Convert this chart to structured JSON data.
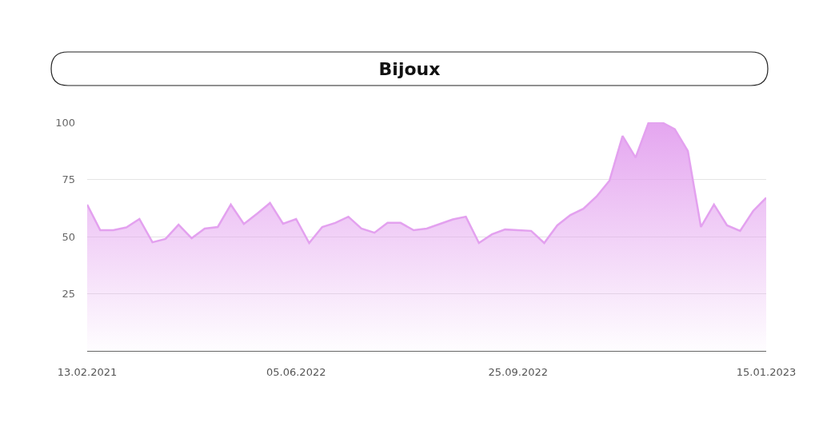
{
  "chart_data": {
    "type": "area",
    "title": "Bijoux",
    "categories": [
      "13.02.2021",
      null,
      null,
      null,
      null,
      null,
      null,
      null,
      null,
      null,
      null,
      null,
      null,
      null,
      null,
      null,
      "05.06.2022",
      null,
      null,
      null,
      null,
      null,
      null,
      null,
      null,
      null,
      null,
      null,
      null,
      null,
      null,
      null,
      null,
      "25.09.2022",
      null,
      null,
      null,
      null,
      null,
      null,
      null,
      null,
      null,
      null,
      null,
      null,
      null,
      null,
      null,
      null,
      null,
      null,
      "15.01.2023"
    ],
    "values": [
      64,
      52.8,
      52.8,
      54,
      57.7,
      47.5,
      49,
      55.2,
      49.3,
      53.5,
      54.2,
      64,
      55.5,
      60,
      64.7,
      55.6,
      57.7,
      47.2,
      54.2,
      56,
      58.7,
      53.5,
      51.7,
      56,
      56,
      52.8,
      53.5,
      55.5,
      57.5,
      58.7,
      47.2,
      51,
      53.1,
      52.8,
      52.5,
      47.2,
      54.9,
      59.4,
      62.2,
      67.5,
      74.5,
      94,
      84.6,
      100,
      100,
      97,
      87.4,
      54.2,
      64,
      54.9,
      52.5,
      61.2,
      67
    ],
    "color": "#e3a1ef",
    "ylim": [
      0,
      100
    ],
    "yticks": [
      25,
      50,
      75,
      100
    ],
    "grid": "y"
  }
}
